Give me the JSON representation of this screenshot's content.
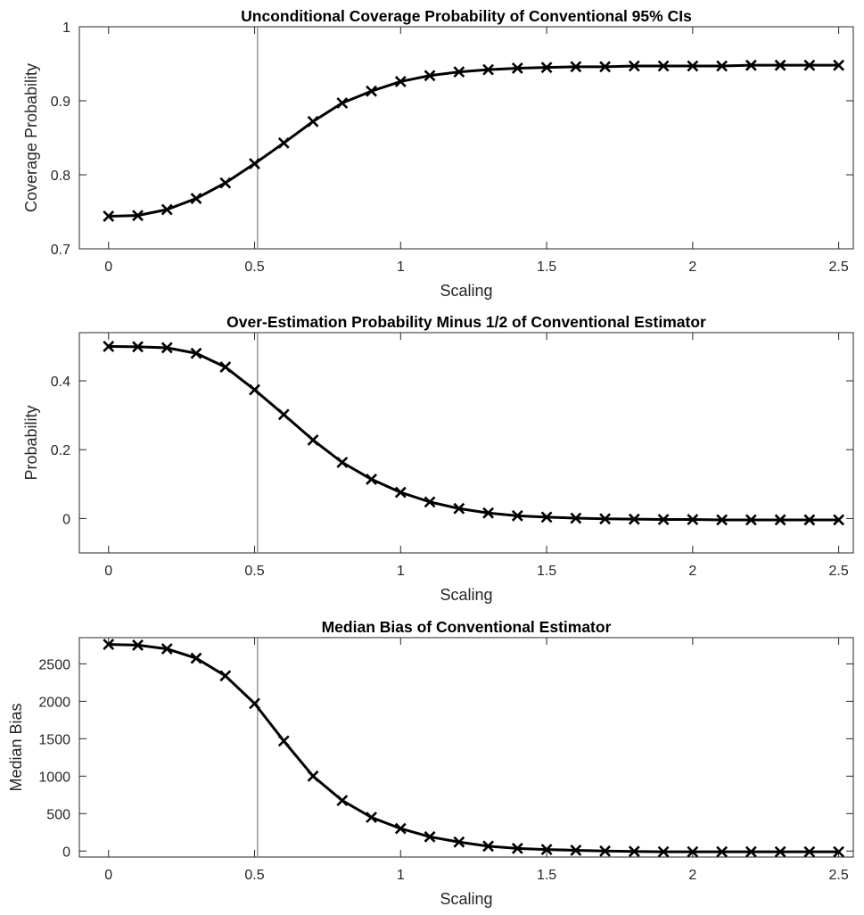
{
  "chart_data": [
    {
      "type": "line",
      "title": "Unconditional Coverage Probability of Conventional 95% CIs",
      "xlabel": "Scaling",
      "ylabel": "Coverage Probability",
      "xlim": [
        -0.1,
        2.55
      ],
      "ylim": [
        0.7,
        1.0
      ],
      "xticks": [
        0,
        0.5,
        1,
        1.5,
        2,
        2.5
      ],
      "xticklabels": [
        "0",
        "0.5",
        "1",
        "1.5",
        "2",
        "2.5"
      ],
      "yticks": [
        0.7,
        0.8,
        0.9,
        1.0
      ],
      "yticklabels": [
        "0.7",
        "0.8",
        "0.9",
        "1"
      ],
      "reference_x": 0.51,
      "grid": false,
      "marker": "x",
      "series_color": "#000000",
      "x": [
        0,
        0.1,
        0.2,
        0.3,
        0.4,
        0.5,
        0.6,
        0.7,
        0.8,
        0.9,
        1.0,
        1.1,
        1.2,
        1.3,
        1.4,
        1.5,
        1.6,
        1.7,
        1.8,
        1.9,
        2.0,
        2.1,
        2.2,
        2.3,
        2.4,
        2.5
      ],
      "y": [
        0.744,
        0.745,
        0.753,
        0.768,
        0.789,
        0.815,
        0.843,
        0.872,
        0.897,
        0.913,
        0.926,
        0.934,
        0.939,
        0.942,
        0.944,
        0.945,
        0.946,
        0.946,
        0.947,
        0.947,
        0.947,
        0.947,
        0.948,
        0.948,
        0.948,
        0.948
      ]
    },
    {
      "type": "line",
      "title": "Over-Estimation Probability Minus 1/2 of Conventional Estimator",
      "xlabel": "Scaling",
      "ylabel": "Probability",
      "xlim": [
        -0.1,
        2.55
      ],
      "ylim": [
        -0.1,
        0.54
      ],
      "xticks": [
        0,
        0.5,
        1,
        1.5,
        2,
        2.5
      ],
      "xticklabels": [
        "0",
        "0.5",
        "1",
        "1.5",
        "2",
        "2.5"
      ],
      "yticks": [
        0,
        0.2,
        0.4
      ],
      "yticklabels": [
        "0",
        "0.2",
        "0.4"
      ],
      "reference_x": 0.51,
      "grid": false,
      "marker": "x",
      "series_color": "#000000",
      "x": [
        0,
        0.1,
        0.2,
        0.3,
        0.4,
        0.5,
        0.6,
        0.7,
        0.8,
        0.9,
        1.0,
        1.1,
        1.2,
        1.3,
        1.4,
        1.5,
        1.6,
        1.7,
        1.8,
        1.9,
        2.0,
        2.1,
        2.2,
        2.3,
        2.4,
        2.5
      ],
      "y": [
        0.5,
        0.499,
        0.496,
        0.48,
        0.44,
        0.374,
        0.302,
        0.228,
        0.163,
        0.114,
        0.076,
        0.048,
        0.029,
        0.016,
        0.008,
        0.004,
        0.001,
        -0.001,
        -0.002,
        -0.003,
        -0.003,
        -0.004,
        -0.004,
        -0.004,
        -0.004,
        -0.004
      ]
    },
    {
      "type": "line",
      "title": "Median Bias of Conventional Estimator",
      "xlabel": "Scaling",
      "ylabel": "Median Bias",
      "xlim": [
        -0.1,
        2.55
      ],
      "ylim": [
        -80,
        2850
      ],
      "xticks": [
        0,
        0.5,
        1,
        1.5,
        2,
        2.5
      ],
      "xticklabels": [
        "0",
        "0.5",
        "1",
        "1.5",
        "2",
        "2.5"
      ],
      "yticks": [
        0,
        500,
        1000,
        1500,
        2000,
        2500
      ],
      "yticklabels": [
        "0",
        "500",
        "1000",
        "1500",
        "2000",
        "2500"
      ],
      "reference_x": 0.51,
      "grid": false,
      "marker": "x",
      "series_color": "#000000",
      "x": [
        0,
        0.1,
        0.2,
        0.3,
        0.4,
        0.5,
        0.6,
        0.7,
        0.8,
        0.9,
        1.0,
        1.1,
        1.2,
        1.3,
        1.4,
        1.5,
        1.6,
        1.7,
        1.8,
        1.9,
        2.0,
        2.1,
        2.2,
        2.3,
        2.4,
        2.5
      ],
      "y": [
        2760,
        2750,
        2700,
        2575,
        2340,
        1970,
        1470,
        1000,
        675,
        450,
        300,
        190,
        120,
        65,
        35,
        20,
        10,
        0,
        -5,
        -10,
        -10,
        -10,
        -10,
        -10,
        -10,
        -10
      ]
    }
  ]
}
